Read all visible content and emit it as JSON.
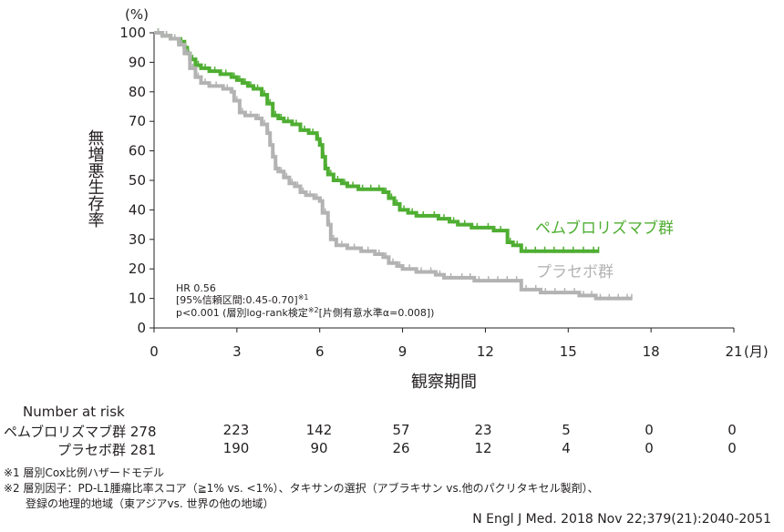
{
  "chart_data": {
    "type": "line",
    "y_unit": "(%)",
    "x_unit": "(月)",
    "xlabel": "観察期間",
    "ylabel": "無増悪生存率",
    "xlim": [
      0,
      21
    ],
    "ylim": [
      0,
      100
    ],
    "x_ticks": [
      "0",
      "3",
      "6",
      "9",
      "12",
      "15",
      "18",
      "21"
    ],
    "y_ticks": [
      "0",
      "10",
      "20",
      "30",
      "40",
      "50",
      "60",
      "70",
      "80",
      "90",
      "100"
    ],
    "grid": false,
    "series": [
      {
        "name": "ペムブロリズマブ群",
        "color": "#4fae32",
        "points": [
          [
            0,
            100
          ],
          [
            0.3,
            99
          ],
          [
            0.6,
            98
          ],
          [
            0.9,
            97
          ],
          [
            1.1,
            95
          ],
          [
            1.2,
            93
          ],
          [
            1.3,
            91
          ],
          [
            1.5,
            89
          ],
          [
            1.7,
            88
          ],
          [
            2.0,
            87
          ],
          [
            2.4,
            86
          ],
          [
            2.8,
            85
          ],
          [
            3.0,
            84
          ],
          [
            3.2,
            83
          ],
          [
            3.4,
            82
          ],
          [
            3.6,
            81
          ],
          [
            3.9,
            79
          ],
          [
            4.1,
            76
          ],
          [
            4.3,
            72
          ],
          [
            4.5,
            71
          ],
          [
            4.7,
            70
          ],
          [
            5.0,
            69
          ],
          [
            5.3,
            67
          ],
          [
            5.6,
            66
          ],
          [
            5.9,
            64
          ],
          [
            6.0,
            62
          ],
          [
            6.1,
            58
          ],
          [
            6.2,
            54
          ],
          [
            6.3,
            52
          ],
          [
            6.5,
            50
          ],
          [
            6.8,
            49
          ],
          [
            7.0,
            48
          ],
          [
            7.4,
            47
          ],
          [
            8.0,
            47
          ],
          [
            8.3,
            46
          ],
          [
            8.5,
            44
          ],
          [
            8.7,
            42
          ],
          [
            8.9,
            40
          ],
          [
            9.2,
            39
          ],
          [
            9.5,
            38
          ],
          [
            10.0,
            38
          ],
          [
            10.3,
            37
          ],
          [
            10.7,
            36
          ],
          [
            11.0,
            35
          ],
          [
            11.5,
            34
          ],
          [
            12.3,
            33
          ],
          [
            12.8,
            29
          ],
          [
            13.0,
            28
          ],
          [
            13.3,
            26
          ],
          [
            15.0,
            26
          ],
          [
            16.1,
            26
          ]
        ]
      },
      {
        "name": "プラセボ群",
        "color": "#b3b3b3",
        "points": [
          [
            0,
            100
          ],
          [
            0.3,
            99
          ],
          [
            0.6,
            98
          ],
          [
            0.9,
            96
          ],
          [
            1.1,
            93
          ],
          [
            1.3,
            88
          ],
          [
            1.5,
            85
          ],
          [
            1.7,
            83
          ],
          [
            2.0,
            82
          ],
          [
            2.5,
            81
          ],
          [
            2.8,
            80
          ],
          [
            2.9,
            77
          ],
          [
            3.1,
            73
          ],
          [
            3.3,
            72
          ],
          [
            3.7,
            71
          ],
          [
            3.9,
            69
          ],
          [
            4.1,
            66
          ],
          [
            4.2,
            62
          ],
          [
            4.3,
            58
          ],
          [
            4.4,
            54
          ],
          [
            4.5,
            53
          ],
          [
            4.7,
            51
          ],
          [
            4.9,
            49
          ],
          [
            5.1,
            48
          ],
          [
            5.3,
            46
          ],
          [
            5.5,
            45
          ],
          [
            5.8,
            44
          ],
          [
            6.0,
            43
          ],
          [
            6.1,
            39
          ],
          [
            6.3,
            35
          ],
          [
            6.4,
            30
          ],
          [
            6.6,
            28
          ],
          [
            7.0,
            27
          ],
          [
            7.5,
            26
          ],
          [
            8.0,
            25
          ],
          [
            8.3,
            24
          ],
          [
            8.5,
            22
          ],
          [
            8.8,
            21
          ],
          [
            9.0,
            20
          ],
          [
            9.5,
            19
          ],
          [
            10.2,
            18
          ],
          [
            10.5,
            17
          ],
          [
            11.0,
            17
          ],
          [
            11.6,
            16
          ],
          [
            13.3,
            13
          ],
          [
            14.0,
            12
          ],
          [
            15.4,
            11
          ],
          [
            16.0,
            10
          ],
          [
            17.3,
            10
          ]
        ]
      }
    ],
    "annotations": {
      "hr": "HR 0.56",
      "ci": "[95%信頼区間:0.45-0.70]",
      "ci_sup": "※1",
      "p": "p<0.001 (層別log-rank検定",
      "p_sup": "※2",
      "p_tail": "[片側有意水準α=0.008])"
    }
  },
  "risk_table": {
    "title": "Number at risk",
    "rows": [
      {
        "label": "ペムブロリズマブ群 278",
        "values": [
          "223",
          "142",
          "57",
          "23",
          "5",
          "0",
          "0"
        ]
      },
      {
        "label": "プラセボ群 281",
        "values": [
          "190",
          "90",
          "26",
          "12",
          "4",
          "0",
          "0"
        ]
      }
    ]
  },
  "footnotes": [
    "※1 層別Cox比例ハザードモデル",
    "※2 層別因子：PD-L1腫瘍比率スコア（≧1% vs. <1%）、タキサンの選択（アブラキサン vs.他のパクリタキセル製剤）、",
    "登録の地理的地域（東アジアvs. 世界の他の地域）"
  ],
  "source": "N Engl J Med. 2018 Nov 22;379(21):2040-2051"
}
